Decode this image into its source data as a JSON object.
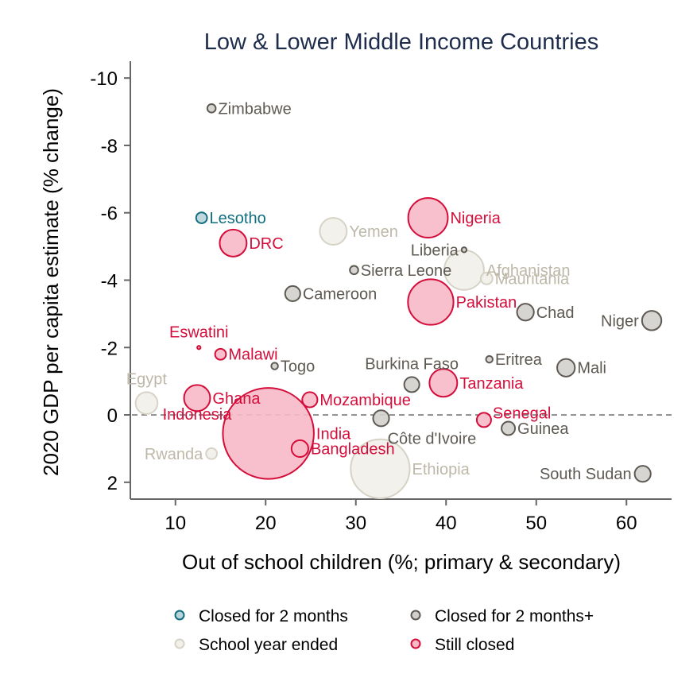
{
  "chart_data": {
    "type": "scatter",
    "title": "Low & Lower Middle Income Countries",
    "xlabel": "Out of school children (%; primary & secondary)",
    "ylabel": "2020 GDP per capita estimate (% change)",
    "xlim": [
      5,
      65
    ],
    "ylim": [
      -10.5,
      2.5
    ],
    "y_inverted": true,
    "x_ticks": [
      "10",
      "20",
      "30",
      "40",
      "50",
      "60"
    ],
    "x_tick_values": [
      10,
      20,
      30,
      40,
      50,
      60
    ],
    "y_ticks": [
      "-10",
      "-8",
      "-6",
      "-4",
      "-2",
      "0",
      "2"
    ],
    "y_tick_values": [
      -10,
      -8,
      -6,
      -4,
      -2,
      0,
      2
    ],
    "reference_line_y": 0,
    "grid": false,
    "legend_position": "bottom",
    "categories": [
      {
        "key": "closed2",
        "name": "Closed for 2 months",
        "fill": "#b9d3d9",
        "stroke": "#0f6f80",
        "text": "#0f6f80"
      },
      {
        "key": "closed2plus",
        "name": "Closed for 2 months+",
        "fill": "#d2d0cc",
        "stroke": "#5e5953",
        "text": "#5e5953"
      },
      {
        "key": "ended",
        "name": "School year ended",
        "fill": "#f1f0ea",
        "stroke": "#d6d3c6",
        "text": "#bdb8a8"
      },
      {
        "key": "closed",
        "name": "Still closed",
        "fill": "#f7b9c6",
        "stroke": "#d40d3a",
        "text": "#d40d3a"
      }
    ],
    "points": [
      {
        "label": "Zimbabwe",
        "x": 14.0,
        "y": -9.1,
        "size": 1.0,
        "cat": "closed2plus",
        "lab": "right"
      },
      {
        "label": "Lesotho",
        "x": 12.9,
        "y": -5.85,
        "size": 1.3,
        "cat": "closed2",
        "lab": "right"
      },
      {
        "label": "DRC",
        "x": 16.4,
        "y": -5.1,
        "size": 3.2,
        "cat": "closed",
        "lab": "right"
      },
      {
        "label": "Yemen",
        "x": 27.5,
        "y": -5.45,
        "size": 3.2,
        "cat": "ended",
        "lab": "right"
      },
      {
        "label": "Nigeria",
        "x": 38.0,
        "y": -5.85,
        "size": 4.7,
        "cat": "closed",
        "lab": "right"
      },
      {
        "label": "Liberia",
        "x": 42.0,
        "y": -4.9,
        "size": 0.6,
        "cat": "closed2plus",
        "lab": "left"
      },
      {
        "label": "Sierra Leone",
        "x": 29.8,
        "y": -4.3,
        "size": 1.0,
        "cat": "closed2plus",
        "lab": "right"
      },
      {
        "label": "Afghanistan",
        "x": 42.0,
        "y": -4.3,
        "size": 4.7,
        "cat": "ended",
        "lab": "right"
      },
      {
        "label": "Mauritania",
        "x": 44.5,
        "y": -4.05,
        "size": 1.4,
        "cat": "ended",
        "lab": "right"
      },
      {
        "label": "Cameroon",
        "x": 23.0,
        "y": -3.6,
        "size": 1.8,
        "cat": "closed2plus",
        "lab": "right"
      },
      {
        "label": "Pakistan",
        "x": 38.3,
        "y": -3.35,
        "size": 5.4,
        "cat": "closed",
        "lab": "right"
      },
      {
        "label": "Chad",
        "x": 48.8,
        "y": -3.05,
        "size": 2.0,
        "cat": "closed2plus",
        "lab": "right"
      },
      {
        "label": "Niger",
        "x": 62.8,
        "y": -2.8,
        "size": 2.3,
        "cat": "closed2plus",
        "lab": "left"
      },
      {
        "label": "Eswatini",
        "x": 12.6,
        "y": -2.0,
        "size": 0.4,
        "cat": "closed",
        "lab": "above"
      },
      {
        "label": "Malawi",
        "x": 15.0,
        "y": -1.8,
        "size": 1.3,
        "cat": "closed",
        "lab": "right"
      },
      {
        "label": "Togo",
        "x": 21.0,
        "y": -1.45,
        "size": 0.8,
        "cat": "closed2plus",
        "lab": "right"
      },
      {
        "label": "Eritrea",
        "x": 44.8,
        "y": -1.65,
        "size": 0.8,
        "cat": "closed2plus",
        "lab": "right"
      },
      {
        "label": "Mali",
        "x": 53.3,
        "y": -1.4,
        "size": 2.1,
        "cat": "closed2plus",
        "lab": "right"
      },
      {
        "label": "Burkina Faso",
        "x": 36.2,
        "y": -0.9,
        "size": 1.8,
        "cat": "closed2plus",
        "lab": "above"
      },
      {
        "label": "Tanzania",
        "x": 39.7,
        "y": -0.95,
        "size": 3.3,
        "cat": "closed",
        "lab": "right"
      },
      {
        "label": "Egypt",
        "x": 6.8,
        "y": -0.35,
        "size": 2.6,
        "cat": "ended",
        "lab": "above"
      },
      {
        "label": "Ghana",
        "x": 12.4,
        "y": -0.5,
        "size": 3.1,
        "cat": "closed",
        "lab": "right"
      },
      {
        "label": "Indonesia",
        "x": 12.4,
        "y": -0.5,
        "size": 0,
        "cat": "closed",
        "lab": "below"
      },
      {
        "label": "Mozambique",
        "x": 24.9,
        "y": -0.45,
        "size": 1.8,
        "cat": "closed",
        "lab": "right"
      },
      {
        "label": "Côte d'Ivoire",
        "x": 32.8,
        "y": 0.1,
        "size": 1.9,
        "cat": "closed2plus",
        "lab": "belowright"
      },
      {
        "label": "Senegal",
        "x": 44.2,
        "y": 0.15,
        "size": 1.7,
        "cat": "closed",
        "lab": "aboveright"
      },
      {
        "label": "Guinea",
        "x": 46.9,
        "y": 0.4,
        "size": 1.6,
        "cat": "closed2plus",
        "lab": "right"
      },
      {
        "label": "India",
        "x": 20.3,
        "y": 0.55,
        "size": 10.8,
        "cat": "closed",
        "lab": "right"
      },
      {
        "label": "Bangladesh",
        "x": 23.8,
        "y": 1.0,
        "size": 2.0,
        "cat": "closed",
        "lab": "right"
      },
      {
        "label": "Rwanda",
        "x": 14.0,
        "y": 1.15,
        "size": 1.3,
        "cat": "ended",
        "lab": "left"
      },
      {
        "label": "Ethiopia",
        "x": 32.7,
        "y": 1.6,
        "size": 7.0,
        "cat": "ended",
        "lab": "right"
      },
      {
        "label": "South Sudan",
        "x": 61.8,
        "y": 1.75,
        "size": 1.9,
        "cat": "closed2plus",
        "lab": "left"
      }
    ]
  }
}
